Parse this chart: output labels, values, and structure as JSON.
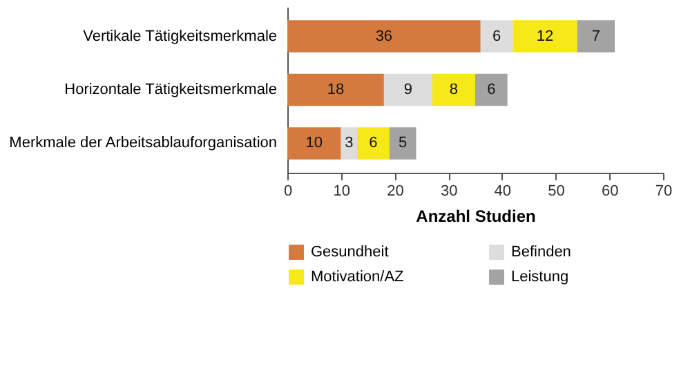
{
  "chart_data": {
    "type": "bar",
    "orientation": "horizontal",
    "stacked": true,
    "xlabel": "Anzahl Studien",
    "categories": [
      "Vertikale Tätigkeitsmerkmale",
      "Horizontale Tätigkeitsmerkmale",
      "Merkmale der Arbeitsablauforganisation"
    ],
    "series": [
      {
        "name": "Gesundheit",
        "color": "#d57a3f",
        "values": [
          36,
          18,
          10
        ]
      },
      {
        "name": "Befinden",
        "color": "#dddddd",
        "values": [
          6,
          9,
          3
        ]
      },
      {
        "name": "Motivation/AZ",
        "color": "#f7e81a",
        "values": [
          12,
          8,
          6
        ]
      },
      {
        "name": "Leistung",
        "color": "#a3a3a3",
        "values": [
          7,
          6,
          5
        ]
      }
    ],
    "xlim": [
      0,
      70
    ],
    "xticks": [
      0,
      10,
      20,
      30,
      40,
      50,
      60,
      70
    ],
    "data_labels": true,
    "grid": false,
    "legend": "bottom"
  }
}
